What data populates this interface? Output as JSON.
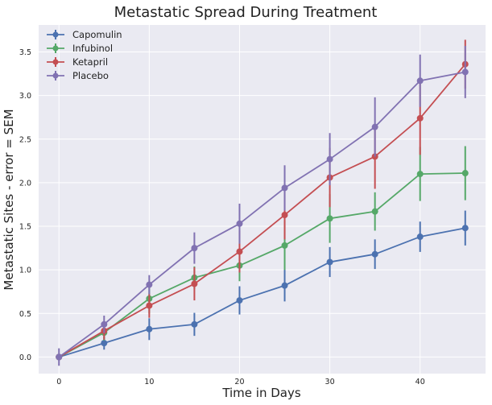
{
  "chart_data": {
    "type": "line",
    "title": "Metastatic Spread During Treatment",
    "xlabel": "Time in Days",
    "ylabel": "Metastatic Sites - error = SEM",
    "x": [
      0,
      5,
      10,
      15,
      20,
      25,
      30,
      35,
      40,
      45
    ],
    "xlim": [
      -2.25,
      47.25
    ],
    "ylim": [
      -0.19,
      3.81
    ],
    "xticks": [
      0,
      10,
      20,
      30,
      40
    ],
    "yticks": [
      0.0,
      0.5,
      1.0,
      1.5,
      2.0,
      2.5,
      3.0,
      3.5
    ],
    "xtick_labels": [
      "0",
      "10",
      "20",
      "30",
      "40"
    ],
    "ytick_labels": [
      "0.0",
      "0.5",
      "1.0",
      "1.5",
      "2.0",
      "2.5",
      "3.0",
      "3.5"
    ],
    "grid": true,
    "legend_position": "top-left",
    "series": [
      {
        "name": "Capomulin",
        "color": "#4c72b0",
        "values": [
          0.0,
          0.16,
          0.32,
          0.375,
          0.65,
          0.82,
          1.09,
          1.18,
          1.38,
          1.48
        ],
        "errors": [
          0.0,
          0.075,
          0.125,
          0.132,
          0.162,
          0.182,
          0.172,
          0.17,
          0.174,
          0.2
        ]
      },
      {
        "name": "Infubinol",
        "color": "#55a868",
        "values": [
          0.0,
          0.28,
          0.67,
          0.91,
          1.05,
          1.28,
          1.59,
          1.67,
          2.1,
          2.11
        ],
        "errors": [
          0.0,
          0.09,
          0.17,
          0.13,
          0.18,
          0.28,
          0.28,
          0.22,
          0.31,
          0.31
        ]
      },
      {
        "name": "Ketapril",
        "color": "#c44e52",
        "values": [
          0.0,
          0.3,
          0.59,
          0.84,
          1.21,
          1.63,
          2.06,
          2.3,
          2.74,
          3.36
        ],
        "errors": [
          0.0,
          0.1,
          0.14,
          0.19,
          0.24,
          0.28,
          0.34,
          0.37,
          0.42,
          0.28
        ]
      },
      {
        "name": "Placebo",
        "color": "#8172b2",
        "values": [
          0.0,
          0.375,
          0.83,
          1.25,
          1.53,
          1.94,
          2.27,
          2.64,
          3.17,
          3.27
        ],
        "errors": [
          0.1,
          0.1,
          0.11,
          0.18,
          0.23,
          0.26,
          0.3,
          0.34,
          0.3,
          0.3
        ]
      }
    ]
  }
}
